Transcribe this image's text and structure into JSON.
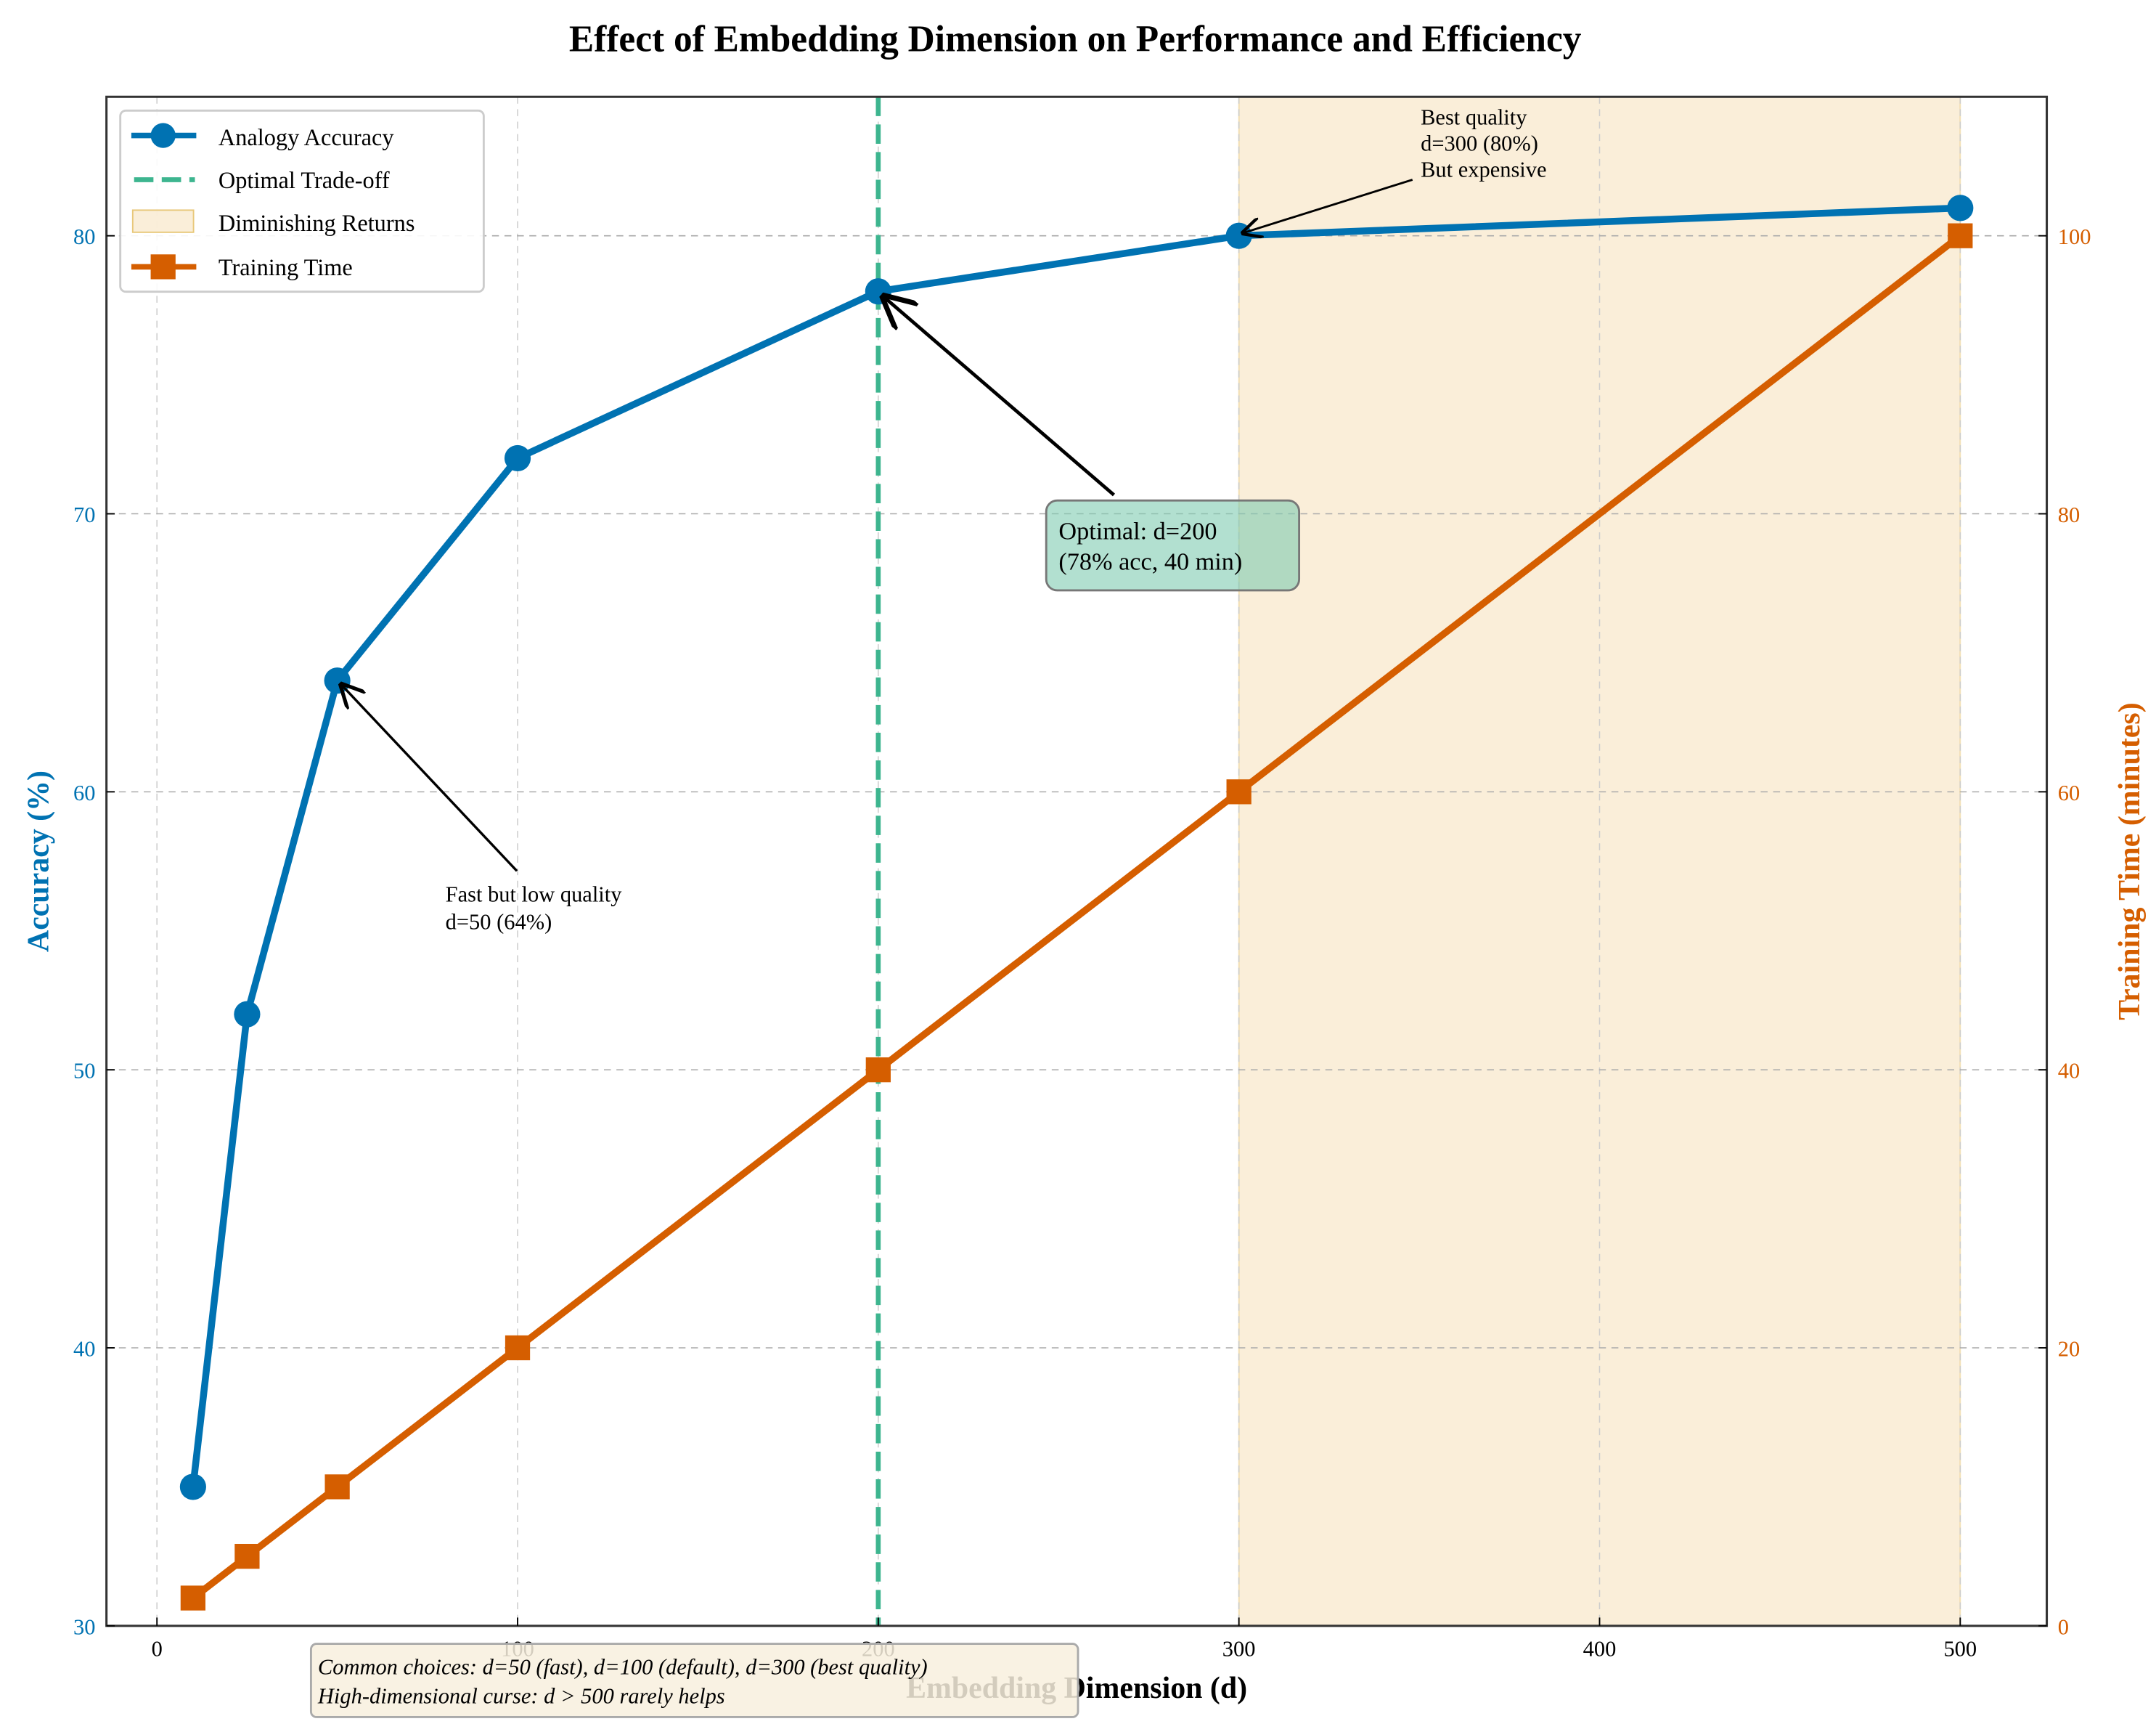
{
  "chart_data": {
    "type": "line",
    "title": "Effect of Embedding Dimension on Performance and Efficiency",
    "xlabel": "Embedding Dimension (d)",
    "ylabel": "Accuracy (%)",
    "y2label": "Training Time (minutes)",
    "xlim": [
      -14,
      524
    ],
    "ylim": [
      30,
      85
    ],
    "y2lim": [
      0,
      110
    ],
    "xticks": [
      0,
      100,
      200,
      300,
      400,
      500
    ],
    "yticks": [
      30,
      40,
      50,
      60,
      70,
      80
    ],
    "y2ticks": [
      0,
      20,
      40,
      60,
      80,
      100
    ],
    "grid": true,
    "legend_position": "top-left",
    "x": [
      10,
      25,
      50,
      100,
      200,
      300,
      500
    ],
    "series": [
      {
        "name": "Analogy Accuracy",
        "axis": "left",
        "marker": "circle",
        "color": "#0072B2",
        "values": [
          35,
          52,
          64,
          72,
          78,
          80,
          81
        ]
      },
      {
        "name": "Training Time",
        "axis": "right",
        "marker": "square",
        "color": "#D55E00",
        "values": [
          2,
          5,
          10,
          20,
          40,
          60,
          100
        ]
      }
    ],
    "vline": {
      "name": "Optimal Trade-off",
      "x": 200,
      "color": "#3DB58F"
    },
    "span": {
      "name": "Diminishing Returns",
      "x0": 300,
      "x1": 500,
      "color": "#F5DEB3"
    },
    "annotations": [
      {
        "text_lines": [
          "Fast but low quality",
          "d=50 (64%)"
        ],
        "target": [
          50,
          64
        ],
        "text_at": [
          80,
          56
        ]
      },
      {
        "text_lines": [
          "Optimal: d=200",
          "(78% acc, 40 min)"
        ],
        "target": [
          200,
          78
        ],
        "text_at": [
          250,
          69.5
        ],
        "boxed": true
      },
      {
        "text_lines": [
          "Best quality",
          "d=300 (80%)",
          "But expensive"
        ],
        "target": [
          300,
          80
        ],
        "text_at": [
          350,
          82
        ]
      }
    ],
    "footnote_lines": [
      "Common choices: d=50 (fast), d=100 (default), d=300 (best quality)",
      "High-dimensional curse: d > 500 rarely helps"
    ]
  }
}
